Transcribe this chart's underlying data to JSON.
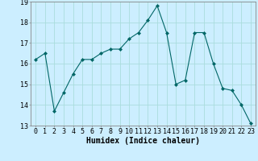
{
  "x": [
    0,
    1,
    2,
    3,
    4,
    5,
    6,
    7,
    8,
    9,
    10,
    11,
    12,
    13,
    14,
    15,
    16,
    17,
    18,
    19,
    20,
    21,
    22,
    23
  ],
  "y": [
    16.2,
    16.5,
    13.7,
    14.6,
    15.5,
    16.2,
    16.2,
    16.5,
    16.7,
    16.7,
    17.2,
    17.5,
    18.1,
    18.8,
    17.5,
    15.0,
    15.2,
    17.5,
    17.5,
    16.0,
    14.8,
    14.7,
    14.0,
    13.1
  ],
  "xlabel": "Humidex (Indice chaleur)",
  "ylim": [
    13,
    19
  ],
  "xlim_min": -0.5,
  "xlim_max": 23.5,
  "yticks": [
    13,
    14,
    15,
    16,
    17,
    18,
    19
  ],
  "xticks": [
    0,
    1,
    2,
    3,
    4,
    5,
    6,
    7,
    8,
    9,
    10,
    11,
    12,
    13,
    14,
    15,
    16,
    17,
    18,
    19,
    20,
    21,
    22,
    23
  ],
  "line_color": "#006666",
  "marker": "D",
  "marker_size": 2.0,
  "bg_color": "#cceeff",
  "grid_color": "#aadddd",
  "xlabel_fontsize": 7,
  "tick_fontsize": 6,
  "lw": 0.8
}
